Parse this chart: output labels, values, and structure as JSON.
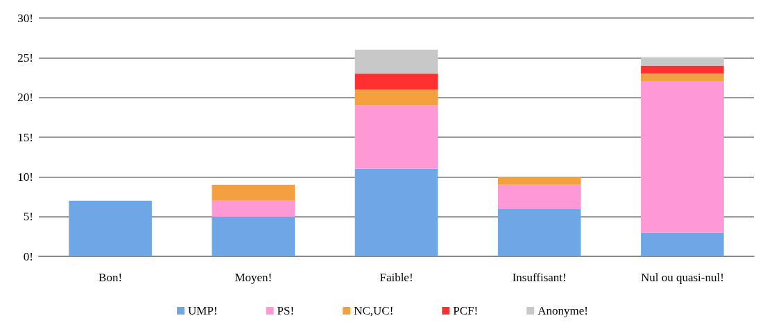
{
  "chart_data": {
    "type": "bar",
    "stacked": true,
    "categories": [
      "Bon!",
      "Moyen!",
      "Faible!",
      "Insuffisant!",
      "Nul ou quasi-nul!"
    ],
    "series": [
      {
        "name": "UMP!",
        "color": "#6fa6e6",
        "values": [
          7,
          5,
          11,
          6,
          3
        ]
      },
      {
        "name": "PS!",
        "color": "#ff99d6",
        "values": [
          0,
          2,
          8,
          3,
          19
        ]
      },
      {
        "name": "NC,UC!",
        "color": "#f2a040",
        "values": [
          0,
          2,
          2,
          1,
          1
        ]
      },
      {
        "name": "PCF!",
        "color": "#ff3030",
        "values": [
          0,
          0,
          2,
          0,
          1
        ]
      },
      {
        "name": "Anonyme!",
        "color": "#c8c8c8",
        "values": [
          0,
          0,
          3,
          0,
          1
        ]
      }
    ],
    "ylim": [
      0,
      30
    ],
    "yticks": [
      {
        "value": 0,
        "label": "0!"
      },
      {
        "value": 5,
        "label": "5!"
      },
      {
        "value": 10,
        "label": "10!"
      },
      {
        "value": 15,
        "label": "15!"
      },
      {
        "value": 20,
        "label": "20!"
      },
      {
        "value": 25,
        "label": "25!"
      },
      {
        "value": 30,
        "label": "30!"
      }
    ],
    "grid": "y",
    "legend": "bottom"
  }
}
